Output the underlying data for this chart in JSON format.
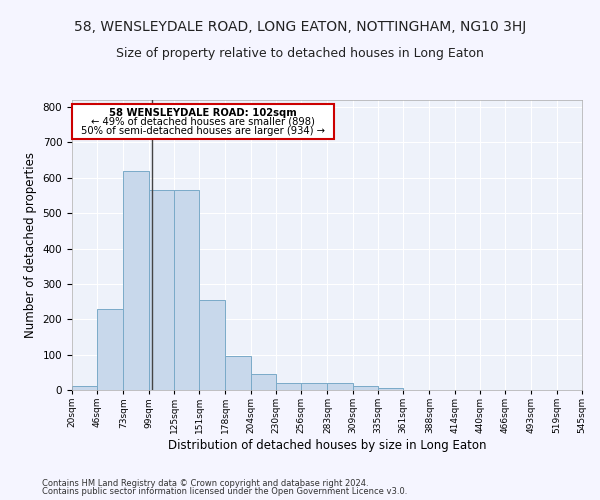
{
  "title": "58, WENSLEYDALE ROAD, LONG EATON, NOTTINGHAM, NG10 3HJ",
  "subtitle": "Size of property relative to detached houses in Long Eaton",
  "xlabel": "Distribution of detached houses by size in Long Eaton",
  "ylabel": "Number of detached properties",
  "bar_color": "#c8d8eb",
  "bar_edge_color": "#7aaac8",
  "background_color": "#eef2fa",
  "grid_color": "#ffffff",
  "bin_edges": [
    20,
    46,
    73,
    99,
    125,
    151,
    178,
    204,
    230,
    256,
    283,
    309,
    335,
    361,
    388,
    414,
    440,
    466,
    493,
    519,
    545
  ],
  "bar_heights": [
    10,
    230,
    620,
    565,
    565,
    255,
    95,
    45,
    20,
    20,
    20,
    10,
    5,
    0,
    0,
    0,
    0,
    0,
    0,
    0
  ],
  "property_size": 102,
  "vline_color": "#444444",
  "annotation_line1": "58 WENSLEYDALE ROAD: 102sqm",
  "annotation_line2": "← 49% of detached houses are smaller (898)",
  "annotation_line3": "50% of semi-detached houses are larger (934) →",
  "annotation_box_color": "#cc0000",
  "annotation_text_color": "#000000",
  "ylim": [
    0,
    820
  ],
  "yticks": [
    0,
    100,
    200,
    300,
    400,
    500,
    600,
    700,
    800
  ],
  "footnote_line1": "Contains HM Land Registry data © Crown copyright and database right 2024.",
  "footnote_line2": "Contains public sector information licensed under the Open Government Licence v3.0.",
  "title_fontsize": 10,
  "subtitle_fontsize": 9,
  "xlabel_fontsize": 8.5,
  "ylabel_fontsize": 8.5,
  "fig_bg": "#f5f5ff"
}
